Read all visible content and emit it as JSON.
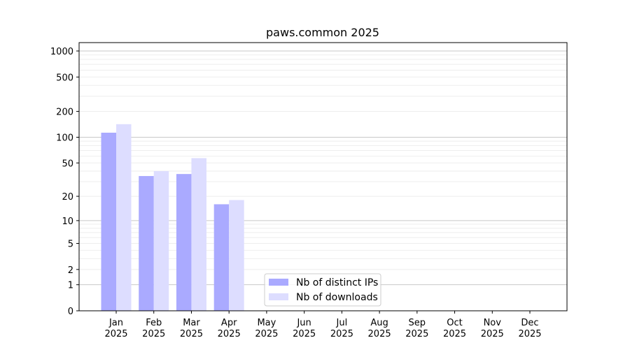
{
  "chart_data": {
    "type": "bar",
    "title": "paws.common 2025",
    "xlabel": "",
    "ylabel": "",
    "yscale": "log(1+y)",
    "ylim": [
      0,
      1250
    ],
    "yticks": [
      0,
      1,
      2,
      5,
      10,
      20,
      50,
      100,
      200,
      500,
      1000
    ],
    "grid": true,
    "legend_position": "lower-center",
    "categories": [
      [
        "Jan",
        "2025"
      ],
      [
        "Feb",
        "2025"
      ],
      [
        "Mar",
        "2025"
      ],
      [
        "Apr",
        "2025"
      ],
      [
        "May",
        "2025"
      ],
      [
        "Jun",
        "2025"
      ],
      [
        "Jul",
        "2025"
      ],
      [
        "Aug",
        "2025"
      ],
      [
        "Sep",
        "2025"
      ],
      [
        "Oct",
        "2025"
      ],
      [
        "Nov",
        "2025"
      ],
      [
        "Dec",
        "2025"
      ]
    ],
    "series": [
      {
        "name": "Nb of distinct IPs",
        "color": "#aaaaff",
        "values": [
          113,
          35,
          37,
          16,
          0,
          0,
          0,
          0,
          0,
          0,
          0,
          0
        ]
      },
      {
        "name": "Nb of downloads",
        "color": "#ddddff",
        "values": [
          142,
          40,
          57,
          18,
          0,
          0,
          0,
          0,
          0,
          0,
          0,
          0
        ]
      }
    ]
  }
}
